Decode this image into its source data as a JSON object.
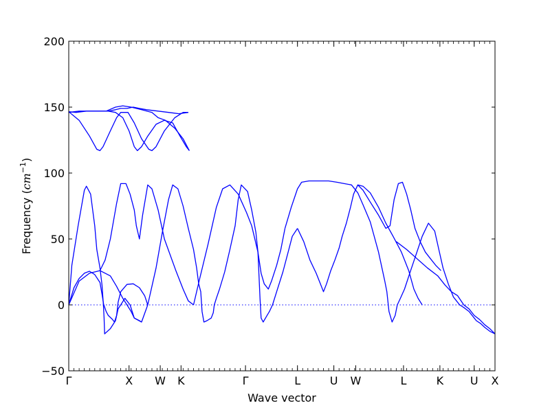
{
  "chart_data": {
    "type": "line",
    "title": "",
    "xlabel": "Wave vector",
    "ylabel_text": "Frequency (",
    "ylabel_unit": "cm",
    "ylabel_exp": "−1",
    "ylabel_close": ")",
    "ylim": [
      -50,
      200
    ],
    "y_ticks": [
      {
        "value": 200,
        "label": "200"
      },
      {
        "value": 150,
        "label": "150"
      },
      {
        "value": 100,
        "label": "100"
      },
      {
        "value": 50,
        "label": "50"
      },
      {
        "value": 0,
        "label": "0"
      },
      {
        "value": -50,
        "label": "−50"
      }
    ],
    "x_ticks": [
      "Γ",
      "X",
      "W",
      "K",
      "Γ",
      "L",
      "U",
      "W",
      "L",
      "K",
      "U",
      "X"
    ],
    "grid": false,
    "zero_line": {
      "value": 0,
      "style": "dotted"
    },
    "series_color": "#0000ff",
    "bands": [
      {
        "points": [
          [
            0,
            0
          ],
          [
            0.5,
            13
          ],
          [
            1,
            20
          ],
          [
            1.5,
            24
          ],
          [
            2,
            25.5
          ],
          [
            2.5,
            23
          ],
          [
            3,
            17
          ],
          [
            3.2,
            8
          ],
          [
            3.35,
            0.5
          ],
          [
            3.6,
            -5
          ],
          [
            3.8,
            -8
          ],
          [
            4.2,
            -11
          ],
          [
            4.4,
            -13
          ],
          [
            4.6,
            -8
          ],
          [
            4.75,
            2
          ],
          [
            5,
            10
          ],
          [
            5.6,
            15.5
          ],
          [
            6.2,
            16
          ],
          [
            6.8,
            13
          ],
          [
            7.3,
            7
          ],
          [
            7.6,
            0
          ],
          [
            8.4,
            28
          ],
          [
            9,
            55
          ],
          [
            9.6,
            80
          ],
          [
            10,
            91
          ],
          [
            10.5,
            88
          ],
          [
            11,
            75
          ],
          [
            11.5,
            58
          ],
          [
            12,
            42
          ],
          [
            12.3,
            28
          ],
          [
            12.5,
            16
          ],
          [
            12.7,
            10
          ],
          [
            12.82,
            -5
          ],
          [
            13,
            -13
          ],
          [
            13.3,
            -12
          ],
          [
            13.7,
            -10
          ],
          [
            13.9,
            -6
          ],
          [
            14,
            0
          ],
          [
            14.2,
            5
          ],
          [
            14.5,
            12
          ],
          [
            15,
            25
          ],
          [
            15.5,
            42
          ],
          [
            16,
            60
          ],
          [
            16.3,
            80
          ],
          [
            16.6,
            91
          ],
          [
            17.2,
            86
          ],
          [
            17.6,
            72
          ],
          [
            18,
            55
          ],
          [
            18.2,
            40
          ],
          [
            18.4,
            5
          ],
          [
            18.5,
            -10
          ],
          [
            18.7,
            -13
          ],
          [
            19,
            -9
          ],
          [
            19.3,
            -5
          ],
          [
            19.6,
            0
          ],
          [
            20,
            10
          ],
          [
            20.6,
            25
          ],
          [
            21.1,
            40
          ],
          [
            21.5,
            52
          ],
          [
            22,
            58
          ]
        ]
      },
      {
        "points": [
          [
            0,
            0
          ],
          [
            0.3,
            30
          ],
          [
            0.9,
            60
          ],
          [
            1.5,
            87
          ],
          [
            1.7,
            90
          ],
          [
            2.1,
            84
          ],
          [
            2.5,
            60
          ],
          [
            2.7,
            42
          ],
          [
            3,
            28
          ],
          [
            3.2,
            15
          ],
          [
            3.33,
            0
          ],
          [
            3.4,
            -10
          ],
          [
            3.45,
            -22
          ],
          [
            4,
            -18
          ],
          [
            4.5,
            -12
          ],
          [
            4.75,
            -3
          ],
          [
            5,
            0
          ],
          [
            5.4,
            5
          ],
          [
            5.7,
            2
          ],
          [
            5.9,
            0
          ],
          [
            6.3,
            -10
          ],
          [
            7,
            -13
          ],
          [
            7.6,
            0
          ]
        ]
      },
      {
        "points": [
          [
            0,
            0
          ],
          [
            1,
            18
          ],
          [
            2,
            24
          ],
          [
            3,
            26
          ],
          [
            4,
            22
          ],
          [
            4.6,
            14
          ],
          [
            5.2,
            5
          ],
          [
            5.6,
            0
          ],
          [
            6,
            -5
          ],
          [
            6.3,
            -10
          ],
          [
            6.8,
            -12
          ],
          [
            7,
            -13
          ]
        ]
      },
      {
        "points": [
          [
            3,
            26
          ],
          [
            3.5,
            34
          ],
          [
            4,
            50
          ],
          [
            4.6,
            77
          ],
          [
            5,
            92
          ],
          [
            5.5,
            92
          ],
          [
            5.9,
            84
          ],
          [
            6.3,
            72
          ],
          [
            6.5,
            60
          ],
          [
            6.8,
            50
          ],
          [
            7.1,
            68
          ],
          [
            7.6,
            91
          ],
          [
            8,
            88
          ],
          [
            8.6,
            72
          ],
          [
            9.2,
            50
          ],
          [
            10.3,
            26
          ],
          [
            11,
            12
          ],
          [
            11.5,
            3
          ],
          [
            12,
            0
          ]
        ]
      },
      {
        "points": [
          [
            12,
            0
          ],
          [
            12.6,
            20
          ],
          [
            13.4,
            46
          ],
          [
            14.2,
            74
          ],
          [
            14.8,
            88
          ],
          [
            15.5,
            91
          ],
          [
            16.3,
            84
          ],
          [
            17.1,
            70
          ],
          [
            17.6,
            60
          ],
          [
            18.2,
            40
          ],
          [
            18.5,
            24
          ],
          [
            18.8,
            16
          ],
          [
            19.2,
            12
          ],
          [
            19.5,
            18
          ],
          [
            20,
            30
          ],
          [
            20.4,
            42
          ],
          [
            20.8,
            58
          ]
        ]
      },
      {
        "points": [
          [
            20.8,
            58
          ],
          [
            21.4,
            74
          ],
          [
            22,
            88
          ],
          [
            22.4,
            93
          ],
          [
            23.1,
            94
          ],
          [
            24,
            94
          ],
          [
            25,
            94
          ],
          [
            25.8,
            93
          ],
          [
            26.5,
            92
          ],
          [
            27.2,
            91
          ],
          [
            27.8,
            85
          ],
          [
            28.3,
            76
          ],
          [
            29,
            63
          ],
          [
            29.8,
            40
          ],
          [
            30.4,
            18
          ],
          [
            30.6,
            10
          ],
          [
            30.8,
            -5
          ],
          [
            31.1,
            -13
          ],
          [
            31.4,
            -8
          ],
          [
            31.6,
            0
          ],
          [
            31.9,
            5
          ],
          [
            32.3,
            12
          ],
          [
            32.8,
            24
          ],
          [
            33.4,
            38
          ],
          [
            34,
            52
          ],
          [
            34.6,
            62
          ],
          [
            35.2,
            56
          ],
          [
            35.6,
            42
          ],
          [
            36,
            28
          ],
          [
            36.5,
            16
          ],
          [
            37,
            6
          ],
          [
            37.3,
            3
          ],
          [
            37.6,
            0
          ],
          [
            38,
            -2
          ],
          [
            38.5,
            -5
          ],
          [
            39,
            -10
          ],
          [
            39.2,
            -12
          ],
          [
            39.6,
            -14
          ],
          [
            40,
            -17
          ],
          [
            40.5,
            -20
          ],
          [
            41,
            -22
          ]
        ]
      },
      {
        "points": [
          [
            22,
            58
          ],
          [
            22.6,
            48
          ],
          [
            23.2,
            34
          ],
          [
            23.8,
            24
          ],
          [
            24.2,
            16
          ],
          [
            24.5,
            10
          ],
          [
            24.8,
            16
          ],
          [
            25.2,
            26
          ],
          [
            25.6,
            34
          ],
          [
            26,
            43
          ],
          [
            26.3,
            52
          ],
          [
            26.7,
            62
          ],
          [
            27.1,
            74
          ],
          [
            27.4,
            84
          ],
          [
            27.8,
            91
          ],
          [
            28.3,
            90
          ],
          [
            29,
            85
          ],
          [
            29.8,
            74
          ],
          [
            30.5,
            62
          ],
          [
            31.2,
            52
          ],
          [
            32,
            40
          ],
          [
            32.7,
            26
          ],
          [
            33.2,
            12
          ],
          [
            33.6,
            5
          ],
          [
            34,
            0
          ]
        ]
      },
      {
        "points": [
          [
            27.8,
            91
          ],
          [
            28.3,
            87
          ],
          [
            29,
            78
          ],
          [
            29.8,
            68
          ],
          [
            30.5,
            58
          ],
          [
            30.9,
            60
          ],
          [
            31.3,
            80
          ],
          [
            31.7,
            92
          ],
          [
            32.1,
            93
          ],
          [
            32.5,
            84
          ],
          [
            32.9,
            72
          ],
          [
            33.3,
            58
          ],
          [
            33.8,
            48
          ],
          [
            34.3,
            40
          ],
          [
            34.8,
            35
          ],
          [
            35.3,
            30
          ],
          [
            35.8,
            26
          ]
        ]
      },
      {
        "points": [
          [
            31.5,
            48
          ],
          [
            32.5,
            42
          ],
          [
            33.5,
            35
          ],
          [
            34.5,
            28
          ],
          [
            35.5,
            22
          ],
          [
            36.2,
            15
          ],
          [
            36.8,
            10
          ],
          [
            37.4,
            7
          ],
          [
            38,
            0
          ],
          [
            38.5,
            -3
          ],
          [
            39,
            -8
          ],
          [
            39.5,
            -11
          ],
          [
            40,
            -15
          ],
          [
            40.5,
            -18
          ],
          [
            41,
            -22
          ]
        ]
      },
      {
        "points": [
          [
            0,
            146
          ],
          [
            1,
            147
          ],
          [
            2,
            147
          ],
          [
            3,
            147
          ],
          [
            3.8,
            147
          ],
          [
            4.5,
            148
          ],
          [
            5,
            149
          ],
          [
            5.6,
            149
          ],
          [
            6.2,
            150
          ],
          [
            6.8,
            149
          ],
          [
            7.5,
            148
          ],
          [
            8.6,
            147
          ],
          [
            9.6,
            146
          ],
          [
            10.6,
            145
          ],
          [
            11.5,
            146
          ]
        ]
      },
      {
        "points": [
          [
            0,
            146.5
          ],
          [
            1,
            140
          ],
          [
            2,
            128
          ],
          [
            2.7,
            118
          ],
          [
            3,
            117
          ],
          [
            3.3,
            120
          ],
          [
            4,
            132
          ],
          [
            4.6,
            142
          ],
          [
            5,
            146
          ],
          [
            5.7,
            146
          ],
          [
            6.3,
            138
          ],
          [
            7,
            126
          ],
          [
            7.7,
            118
          ],
          [
            8,
            117
          ],
          [
            8.4,
            120
          ],
          [
            9.2,
            132
          ],
          [
            10.2,
            142
          ],
          [
            11,
            146
          ],
          [
            11.5,
            146
          ]
        ]
      },
      {
        "points": [
          [
            0,
            146.5
          ],
          [
            0.7,
            146
          ],
          [
            1.7,
            147
          ],
          [
            2.8,
            147
          ],
          [
            3.8,
            147
          ],
          [
            4.5,
            146
          ],
          [
            5.2,
            142
          ],
          [
            5.8,
            132
          ],
          [
            6.3,
            120
          ],
          [
            6.6,
            117
          ],
          [
            7,
            120
          ],
          [
            7.6,
            128
          ],
          [
            8.4,
            137
          ],
          [
            9.2,
            140
          ],
          [
            10,
            138
          ],
          [
            10.7,
            128
          ],
          [
            11.3,
            120
          ],
          [
            11.6,
            117
          ]
        ]
      },
      {
        "points": [
          [
            3.6,
            147
          ],
          [
            4.5,
            150
          ],
          [
            5.2,
            151
          ],
          [
            6,
            150
          ],
          [
            7,
            148
          ],
          [
            8,
            146
          ],
          [
            8.6,
            142
          ],
          [
            9.3,
            140
          ],
          [
            10.2,
            134
          ],
          [
            11,
            126
          ],
          [
            11.6,
            117
          ]
        ]
      }
    ]
  }
}
